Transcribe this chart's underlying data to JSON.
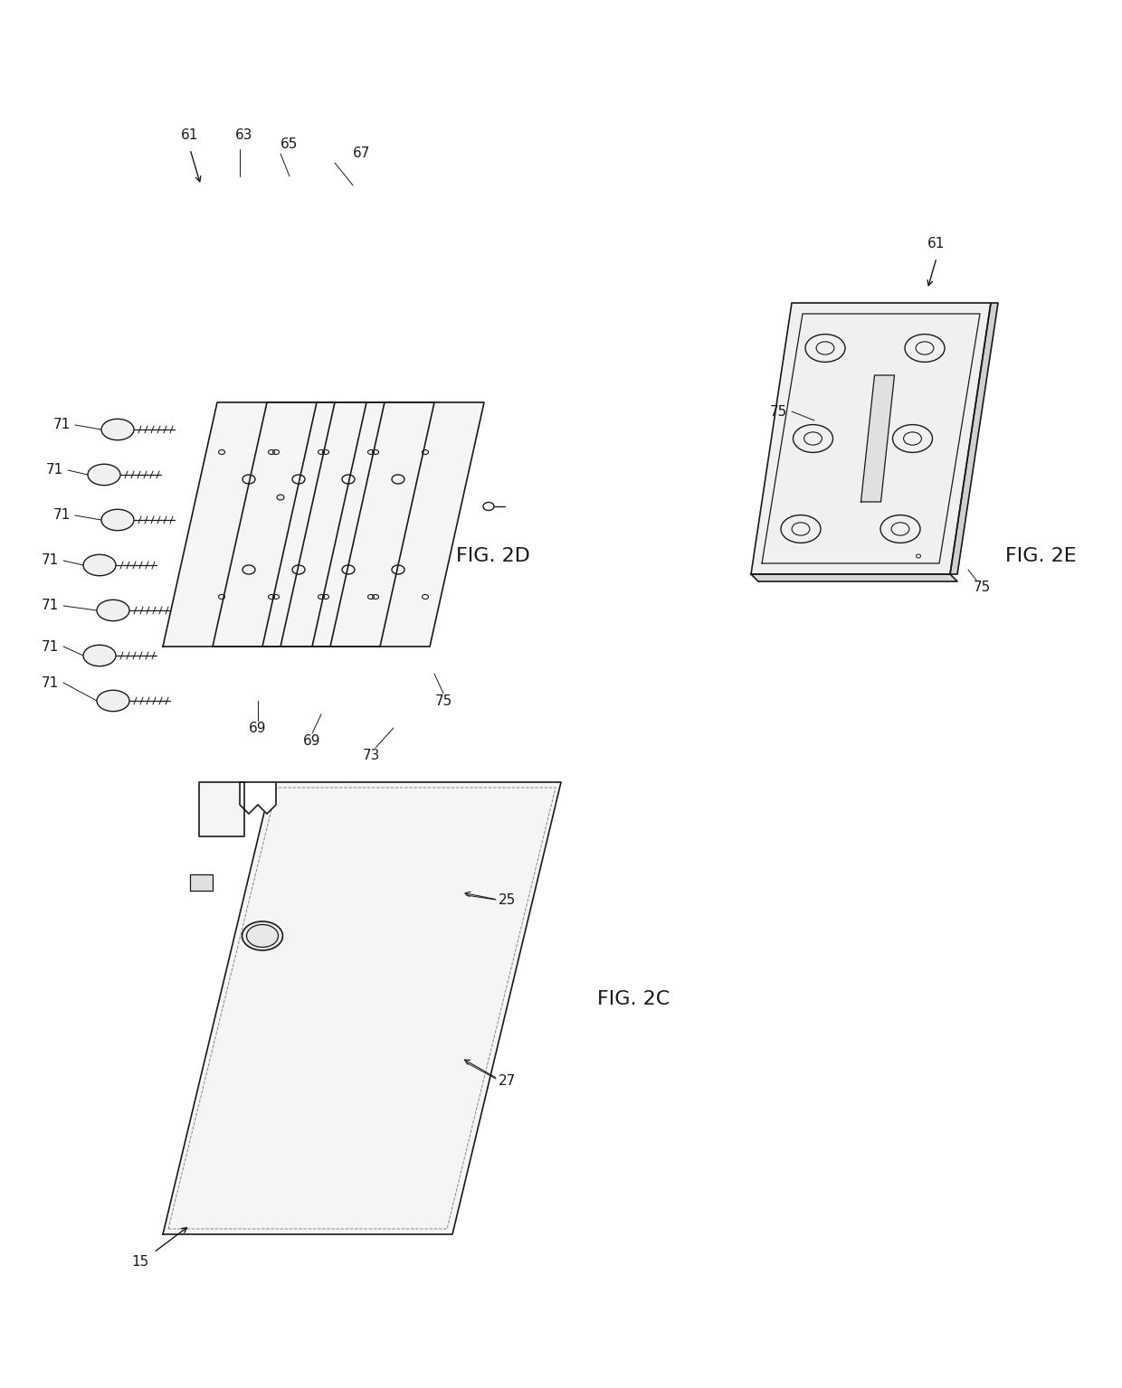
{
  "bg_color": "#ffffff",
  "line_color": "#1a1a1a",
  "line_width": 1.2,
  "fig2d_label": "FIG. 2D",
  "fig2e_label": "FIG. 2E",
  "fig2c_label": "FIG. 2C",
  "labels": {
    "61_top": "61",
    "63": "63",
    "65": "65",
    "67": "67",
    "71_1": "71",
    "71_2": "71",
    "71_3": "71",
    "71_4": "71",
    "71_5": "71",
    "71_6": "71",
    "71_7": "71",
    "69_1": "69",
    "69_2": "69",
    "73": "73",
    "75_1": "75",
    "61_e": "61",
    "75_e1": "75",
    "75_e2": "75",
    "25": "25",
    "27": "27",
    "15": "15"
  },
  "font_size": 11
}
